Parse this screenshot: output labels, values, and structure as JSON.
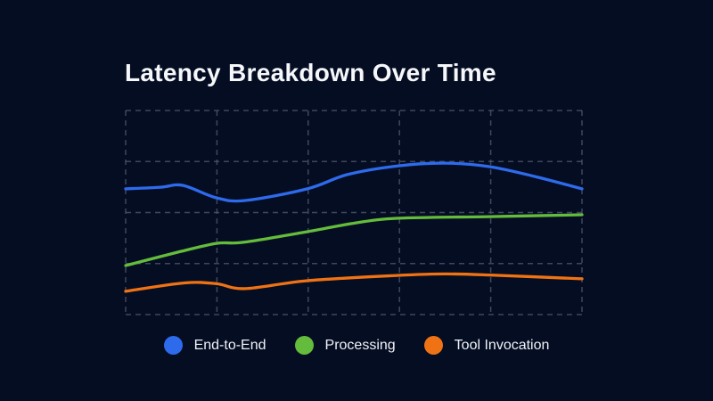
{
  "title": "Latency Breakdown Over Time",
  "colors": {
    "background": "#050d22",
    "grid": "#4d566e",
    "title_text": "#f5f7fa",
    "legend_text": "#eef1f6",
    "end_to_end": "#2e6bec",
    "processing": "#64bc3c",
    "tool_invocation": "#ef7315"
  },
  "legend": {
    "items": [
      {
        "label": "End-to-End",
        "color": "#2e6bec"
      },
      {
        "label": "Processing",
        "color": "#64bc3c"
      },
      {
        "label": "Tool Invocation",
        "color": "#ef7315"
      }
    ]
  },
  "chart_data": {
    "type": "line",
    "title": "Latency Breakdown Over Time",
    "xlabel": "",
    "ylabel": "",
    "axis_tick_labels_visible": false,
    "grid": {
      "visible": true,
      "style": "dashed",
      "columns": 5,
      "rows": 4
    },
    "legend_position": "bottom",
    "units": "percent_of_plot_area; x: 0=left edge .. 100=right edge, y: 0=top gridline .. 100=bottom gridline",
    "series": [
      {
        "name": "End-to-End",
        "color": "#2e6bec",
        "points": [
          [
            0,
            38.4
          ],
          [
            7.6,
            37.6
          ],
          [
            12.5,
            36.7
          ],
          [
            19.9,
            42.8
          ],
          [
            26.2,
            44.1
          ],
          [
            39.8,
            38.4
          ],
          [
            48.6,
            31.4
          ],
          [
            59.8,
            27.1
          ],
          [
            70.1,
            25.8
          ],
          [
            79.7,
            27.5
          ],
          [
            89.6,
            32.3
          ],
          [
            100,
            38.4
          ]
        ]
      },
      {
        "name": "Processing",
        "color": "#64bc3c",
        "points": [
          [
            0,
            76.0
          ],
          [
            11.5,
            69.4
          ],
          [
            19.9,
            65.1
          ],
          [
            25.8,
            64.6
          ],
          [
            39.8,
            59.4
          ],
          [
            50.6,
            55.0
          ],
          [
            59.8,
            52.8
          ],
          [
            79.7,
            52.0
          ],
          [
            100,
            51.1
          ]
        ]
      },
      {
        "name": "Tool Invocation",
        "color": "#ef7315",
        "points": [
          [
            0,
            88.6
          ],
          [
            12.9,
            84.5
          ],
          [
            19.9,
            84.9
          ],
          [
            26.2,
            87.3
          ],
          [
            39.8,
            83.4
          ],
          [
            59.8,
            80.8
          ],
          [
            70.1,
            80.1
          ],
          [
            79.7,
            80.6
          ],
          [
            100,
            82.5
          ]
        ]
      }
    ]
  }
}
